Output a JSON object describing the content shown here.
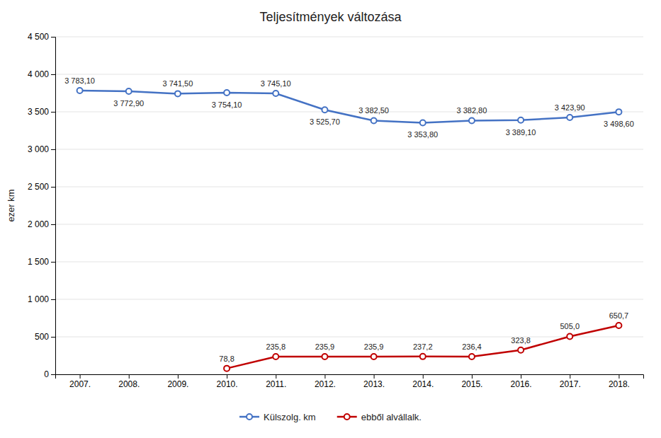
{
  "chart_data": {
    "type": "line",
    "title": "Teljesítmények változása",
    "ylabel": "ezer km",
    "categories": [
      "2007.",
      "2008.",
      "2009.",
      "2010.",
      "2011.",
      "2012.",
      "2013.",
      "2014.",
      "2015.",
      "2016.",
      "2017.",
      "2018."
    ],
    "series": [
      {
        "name": "Külszolg. km",
        "color": "#4472C4",
        "values": [
          3783.1,
          3772.9,
          3741.5,
          3754.1,
          3745.1,
          3525.7,
          3382.5,
          3353.8,
          3382.8,
          3389.1,
          3423.9,
          3498.6
        ],
        "value_labels": [
          "3 783,10",
          "3 772,90",
          "3 741,50",
          "3 754,10",
          "3 745,10",
          "3 525,70",
          "3 382,50",
          "3 353,80",
          "3 382,80",
          "3 389,10",
          "3 423,90",
          "3 498,60"
        ]
      },
      {
        "name": "ebből alvállalk.",
        "color": "#C00000",
        "values": [
          null,
          null,
          null,
          78.8,
          235.8,
          235.9,
          235.9,
          237.2,
          236.4,
          323.8,
          505.0,
          650.7
        ],
        "value_labels": [
          null,
          null,
          null,
          "78,8",
          "235,8",
          "235,9",
          "235,9",
          "237,2",
          "236,4",
          "323,8",
          "505,0",
          "650,7"
        ]
      }
    ],
    "ylim": [
      0,
      4500
    ],
    "yticks": [
      0,
      500,
      {
        "value": 1000,
        "label": "1 000"
      },
      {
        "value": 1500,
        "label": "1 500"
      },
      {
        "value": 2000,
        "label": "2 000"
      },
      {
        "value": 2500,
        "label": "2 500"
      },
      {
        "value": 3000,
        "label": "3 000"
      },
      {
        "value": 3500,
        "label": "3 500"
      },
      {
        "value": 4000,
        "label": "4 000"
      },
      {
        "value": 4500,
        "label": "4 500"
      }
    ],
    "grid": true,
    "legend": "bottom",
    "data_labels": true,
    "marker": "circle"
  }
}
